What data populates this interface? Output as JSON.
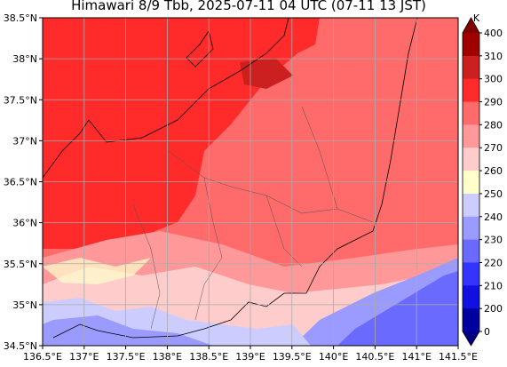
{
  "title": "Himawari 8/9 Tbb, 2025-07-11 04 UTC (07-11 13 JST)",
  "lat_labels": [
    "38.5°N",
    "38°N",
    "37.5°N",
    "37°N",
    "36.5°N",
    "36°N",
    "35.5°N",
    "35°N",
    "34.5°N"
  ],
  "lon_labels": [
    "136.5°E",
    "137°E",
    "137.5°E",
    "138°E",
    "138.5°E",
    "139°E",
    "139.5°E",
    "140°E",
    "140.5°E",
    "141°E",
    "141.5°E"
  ],
  "colorbar": {
    "unit": "K",
    "labels": [
      "400",
      "310",
      "300",
      "290",
      "280",
      "270",
      "260",
      "250",
      "240",
      "230",
      "220",
      "210",
      "200",
      "0"
    ]
  }
}
